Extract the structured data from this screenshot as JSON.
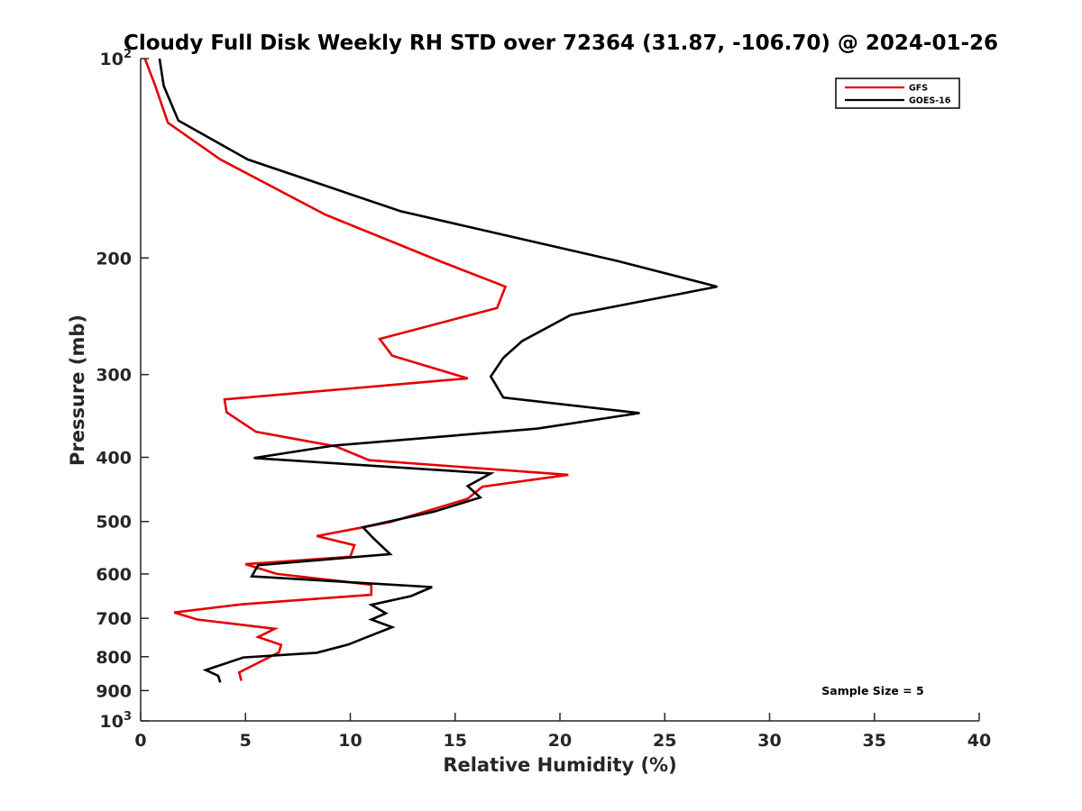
{
  "chart_data": {
    "type": "line",
    "title": "Cloudy Full Disk Weekly RH STD over 72364 (31.87, -106.70) @ 2024-01-26",
    "xlabel": "Relative Humidity (%)",
    "ylabel": "Pressure (mb)",
    "xlim": [
      0,
      40
    ],
    "ylim": [
      100,
      1000
    ],
    "y_scale": "log",
    "y_reversed": true,
    "grid": false,
    "legend_position": "top-right",
    "x_ticks": [
      0,
      5,
      10,
      15,
      20,
      25,
      30,
      35,
      40
    ],
    "x_tick_labels": [
      "0",
      "5",
      "10",
      "15",
      "20",
      "25",
      "30",
      "35",
      "40"
    ],
    "y_ticks": [
      100,
      200,
      300,
      400,
      500,
      600,
      700,
      800,
      900,
      1000
    ],
    "y_tick_labels": [
      {
        "base": "10",
        "exp": "2"
      },
      {
        "base": "200",
        "exp": ""
      },
      {
        "base": "300",
        "exp": ""
      },
      {
        "base": "400",
        "exp": ""
      },
      {
        "base": "500",
        "exp": ""
      },
      {
        "base": "600",
        "exp": ""
      },
      {
        "base": "700",
        "exp": ""
      },
      {
        "base": "800",
        "exp": ""
      },
      {
        "base": "900",
        "exp": ""
      },
      {
        "base": "10",
        "exp": "3"
      }
    ],
    "series": [
      {
        "name": "GFS",
        "color": "#e60000",
        "x": [
          0.2,
          0.7,
          1.3,
          3.8,
          8.8,
          14.4,
          17.4,
          17.0,
          11.4,
          12.0,
          15.6,
          4.0,
          4.1,
          5.5,
          9.3,
          10.9,
          20.4,
          16.3,
          15.6,
          11.9,
          8.4,
          10.2,
          10.0,
          5.0,
          6.5,
          11.0,
          11.0,
          4.8,
          1.6,
          2.7,
          6.4,
          5.6,
          6.7,
          6.6,
          4.7,
          4.8
        ],
        "y": [
          100,
          110,
          125,
          142,
          172,
          203,
          221,
          238,
          265,
          281,
          304,
          327,
          342,
          366,
          385,
          404,
          425,
          443,
          462,
          501,
          526,
          543,
          565,
          580,
          600,
          623,
          645,
          667,
          686,
          703,
          726,
          747,
          768,
          788,
          845,
          870
        ]
      },
      {
        "name": "GOES-16",
        "color": "#000000",
        "x": [
          0.9,
          1.1,
          1.8,
          5.1,
          12.4,
          22.7,
          27.5,
          20.5,
          18.2,
          17.3,
          16.7,
          17.3,
          23.8,
          18.9,
          9.2,
          5.4,
          16.7,
          15.6,
          16.2,
          14.0,
          10.6,
          11.1,
          11.9,
          5.6,
          5.3,
          13.9,
          12.9,
          11.0,
          11.7,
          11.0,
          12.0,
          10.8,
          9.9,
          8.4,
          4.9,
          3.1,
          3.7,
          3.8
        ],
        "y": [
          100,
          110,
          124,
          142,
          170,
          202,
          221,
          244,
          267,
          283,
          302,
          325,
          343,
          362,
          384,
          401,
          423,
          442,
          460,
          483,
          510,
          530,
          560,
          582,
          605,
          628,
          648,
          668,
          688,
          703,
          722,
          747,
          767,
          789,
          802,
          838,
          855,
          875
        ]
      }
    ],
    "legend": [
      {
        "label": "GFS",
        "color": "#e60000"
      },
      {
        "label": "GOES-16",
        "color": "#000000"
      }
    ],
    "annotations": [
      "Sample Size = 5"
    ]
  }
}
